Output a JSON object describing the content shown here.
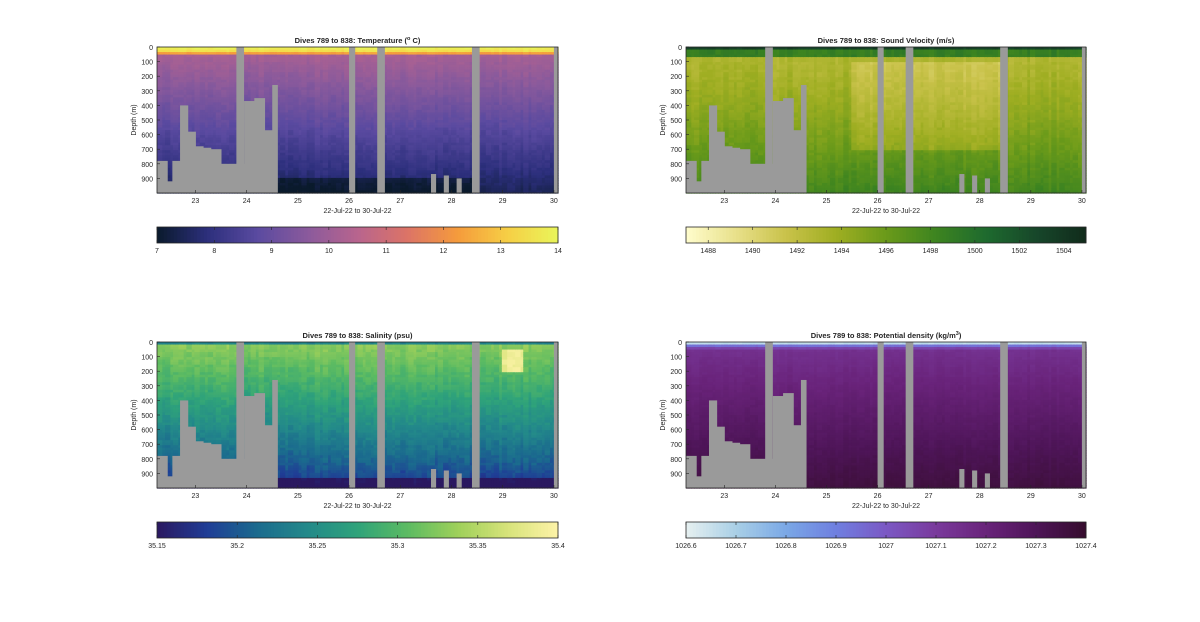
{
  "figure": {
    "background": "#ffffff",
    "mask_color": "#9a9a9a"
  },
  "chart_data": [
    {
      "type": "heatmap",
      "title": "Dives 789 to 838: Temperature (° C)",
      "title_main": "Dives 789 to 838: Temperature (",
      "title_sup": "o",
      "title_end": " C)",
      "xlabel": "22-Jul-22 to 30-Jul-22",
      "ylabel": "Depth (m)",
      "xlim": [
        22.25,
        30.08
      ],
      "ylim": [
        0,
        1000
      ],
      "y_reversed": true,
      "xticks": [
        23,
        24,
        25,
        26,
        27,
        28,
        29,
        30
      ],
      "yticks": [
        0,
        100,
        200,
        300,
        400,
        500,
        600,
        700,
        800,
        900
      ],
      "colormap": "thermal",
      "colormap_stops": [
        "#0a1a2c",
        "#2c2f7c",
        "#5a4aa0",
        "#8a5a9c",
        "#b8648e",
        "#dc7466",
        "#f59b3c",
        "#f6cf45",
        "#e9f55a"
      ],
      "clim": [
        7,
        14
      ],
      "colorbar_ticks": [
        7,
        8,
        9,
        10,
        11,
        12,
        13,
        14
      ],
      "column_gaps": [
        [
          23.8,
          23.95
        ],
        [
          26.0,
          26.12
        ],
        [
          26.55,
          26.7
        ],
        [
          28.4,
          28.55
        ],
        [
          30.0,
          30.08
        ]
      ],
      "bottom_depth": [
        [
          22.25,
          780
        ],
        [
          22.45,
          920
        ],
        [
          22.55,
          780
        ],
        [
          22.7,
          400
        ],
        [
          22.85,
          580
        ],
        [
          23.0,
          680
        ],
        [
          23.15,
          690
        ],
        [
          23.3,
          700
        ],
        [
          23.5,
          800
        ],
        [
          23.8,
          800
        ],
        [
          23.95,
          370
        ],
        [
          24.15,
          350
        ],
        [
          24.35,
          570
        ],
        [
          24.5,
          260
        ],
        [
          24.6,
          1000
        ],
        [
          30.0,
          1000
        ],
        [
          30.08,
          310
        ]
      ],
      "surface_mixed_layer_depth": 60,
      "deep_value_min": 7.2
    },
    {
      "type": "heatmap",
      "title": "Dives 789 to 838: Sound Velocity (m/s)",
      "xlabel": "22-Jul-22 to 30-Jul-22",
      "ylabel": "Depth (m)",
      "xlim": [
        22.25,
        30.08
      ],
      "ylim": [
        0,
        1000
      ],
      "y_reversed": true,
      "xticks": [
        23,
        24,
        25,
        26,
        27,
        28,
        29,
        30
      ],
      "yticks": [
        0,
        100,
        200,
        300,
        400,
        500,
        600,
        700,
        800,
        900
      ],
      "colormap": "speed",
      "colormap_stops": [
        "#fffdcd",
        "#e8e08a",
        "#c9c24a",
        "#9fae22",
        "#6a9a1a",
        "#3d8420",
        "#1e6a2e",
        "#17472a",
        "#112b1c"
      ],
      "clim": [
        1487,
        1505
      ],
      "colorbar_ticks": [
        1488,
        1490,
        1492,
        1494,
        1496,
        1498,
        1500,
        1502,
        1504
      ],
      "column_gaps": [
        [
          23.8,
          23.95
        ],
        [
          26.0,
          26.12
        ],
        [
          26.55,
          26.7
        ],
        [
          28.4,
          28.55
        ],
        [
          30.0,
          30.08
        ]
      ],
      "bottom_depth": [
        [
          22.25,
          780
        ],
        [
          22.45,
          920
        ],
        [
          22.55,
          780
        ],
        [
          22.7,
          400
        ],
        [
          22.85,
          580
        ],
        [
          23.0,
          680
        ],
        [
          23.15,
          690
        ],
        [
          23.3,
          700
        ],
        [
          23.5,
          800
        ],
        [
          23.8,
          800
        ],
        [
          23.95,
          370
        ],
        [
          24.15,
          350
        ],
        [
          24.35,
          570
        ],
        [
          24.5,
          260
        ],
        [
          24.6,
          1000
        ],
        [
          30.0,
          1000
        ],
        [
          30.08,
          310
        ]
      ]
    },
    {
      "type": "heatmap",
      "title": "Dives 789 to 838: Salinity (psu)",
      "xlabel": "22-Jul-22 to 30-Jul-22",
      "ylabel": "Depth (m)",
      "xlim": [
        22.25,
        30.08
      ],
      "ylim": [
        0,
        1000
      ],
      "y_reversed": true,
      "xticks": [
        23,
        24,
        25,
        26,
        27,
        28,
        29,
        30
      ],
      "yticks": [
        0,
        100,
        200,
        300,
        400,
        500,
        600,
        700,
        800,
        900
      ],
      "colormap": "haline",
      "colormap_stops": [
        "#2a1860",
        "#1f3d96",
        "#1b6b8e",
        "#23898a",
        "#2fa37a",
        "#5cbb62",
        "#9ed05a",
        "#d7e37a",
        "#fdf3a8"
      ],
      "clim": [
        35.15,
        35.4
      ],
      "colorbar_ticks": [
        35.15,
        35.2,
        35.25,
        35.3,
        35.35,
        35.4
      ],
      "column_gaps": [
        [
          23.8,
          23.95
        ],
        [
          26.0,
          26.12
        ],
        [
          26.55,
          26.7
        ],
        [
          28.4,
          28.55
        ],
        [
          30.0,
          30.08
        ]
      ],
      "bottom_depth": [
        [
          22.25,
          780
        ],
        [
          22.45,
          920
        ],
        [
          22.55,
          780
        ],
        [
          22.7,
          400
        ],
        [
          22.85,
          580
        ],
        [
          23.0,
          680
        ],
        [
          23.15,
          690
        ],
        [
          23.3,
          700
        ],
        [
          23.5,
          800
        ],
        [
          23.8,
          800
        ],
        [
          23.95,
          370
        ],
        [
          24.15,
          350
        ],
        [
          24.35,
          570
        ],
        [
          24.5,
          260
        ],
        [
          24.6,
          1000
        ],
        [
          30.0,
          1000
        ],
        [
          30.08,
          310
        ]
      ]
    },
    {
      "type": "heatmap",
      "title": "Dives 789 to 838: Potential density (kg/m³)",
      "title_main": "Dives 789 to 838: Potential density (kg/m",
      "title_sup": "3",
      "title_end": ")",
      "xlabel": "22-Jul-22 to 30-Jul-22",
      "ylabel": "Depth (m)",
      "xlim": [
        22.25,
        30.08
      ],
      "ylim": [
        0,
        1000
      ],
      "y_reversed": true,
      "xticks": [
        23,
        24,
        25,
        26,
        27,
        28,
        29,
        30
      ],
      "yticks": [
        0,
        100,
        200,
        300,
        400,
        500,
        600,
        700,
        800,
        900
      ],
      "colormap": "dense",
      "colormap_stops": [
        "#e6f0f0",
        "#a9cfe6",
        "#7aa8e6",
        "#6f7fe0",
        "#7b58c4",
        "#7a3a9c",
        "#69237a",
        "#4e1558",
        "#360d2e"
      ],
      "clim": [
        1026.6,
        1027.4
      ],
      "colorbar_ticks": [
        1026.6,
        1026.7,
        1026.8,
        1026.9,
        1027,
        1027.1,
        1027.2,
        1027.3,
        1027.4
      ],
      "column_gaps": [
        [
          23.8,
          23.95
        ],
        [
          26.0,
          26.12
        ],
        [
          26.55,
          26.7
        ],
        [
          28.4,
          28.55
        ],
        [
          30.0,
          30.08
        ]
      ],
      "bottom_depth": [
        [
          22.25,
          780
        ],
        [
          22.45,
          920
        ],
        [
          22.55,
          780
        ],
        [
          22.7,
          400
        ],
        [
          22.85,
          580
        ],
        [
          23.0,
          680
        ],
        [
          23.15,
          690
        ],
        [
          23.3,
          700
        ],
        [
          23.5,
          800
        ],
        [
          23.8,
          800
        ],
        [
          23.95,
          370
        ],
        [
          24.15,
          350
        ],
        [
          24.35,
          570
        ],
        [
          24.5,
          260
        ],
        [
          24.6,
          1000
        ],
        [
          30.0,
          1000
        ],
        [
          30.08,
          310
        ]
      ]
    }
  ]
}
